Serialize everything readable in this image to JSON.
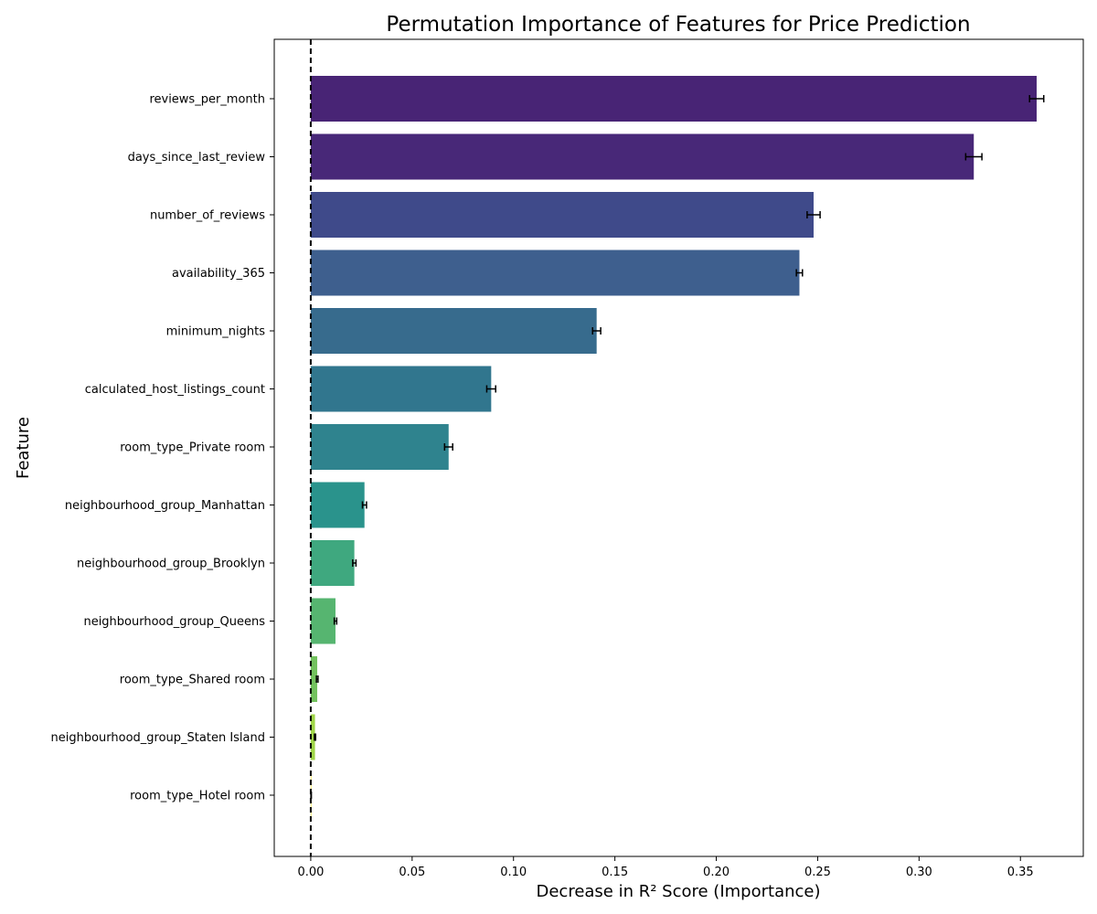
{
  "chart_data": {
    "type": "bar",
    "orientation": "horizontal",
    "title": "Permutation Importance of Features for Price Prediction",
    "xlabel": "Decrease in R² Score (Importance)",
    "ylabel": "Feature",
    "xlim": [
      -0.018,
      0.381
    ],
    "xticks": [
      0.0,
      0.05,
      0.1,
      0.15,
      0.2,
      0.25,
      0.3,
      0.35
    ],
    "xtick_labels": [
      "0.00",
      "0.05",
      "0.10",
      "0.15",
      "0.20",
      "0.25",
      "0.30",
      "0.35"
    ],
    "reference_line": {
      "x": 0,
      "style": "dashed"
    },
    "grid": false,
    "categories": [
      "reviews_per_month",
      "days_since_last_review",
      "number_of_reviews",
      "availability_365",
      "minimum_nights",
      "calculated_host_listings_count",
      "room_type_Private room",
      "neighbourhood_group_Manhattan",
      "neighbourhood_group_Brooklyn",
      "neighbourhood_group_Queens",
      "room_type_Shared room",
      "neighbourhood_group_Staten Island",
      "room_type_Hotel room"
    ],
    "values": [
      0.358,
      0.327,
      0.248,
      0.241,
      0.141,
      0.089,
      0.068,
      0.0265,
      0.0215,
      0.0122,
      0.0032,
      0.0021,
      0.0002
    ],
    "errors": [
      0.0035,
      0.004,
      0.0032,
      0.0015,
      0.002,
      0.0022,
      0.002,
      0.001,
      0.0008,
      0.0006,
      0.0004,
      0.0003,
      0.0001
    ],
    "colors": [
      "#482475",
      "#482878",
      "#3f4a8a",
      "#3e5f8e",
      "#376b8d",
      "#31768e",
      "#2f838e",
      "#2a938c",
      "#3fa87f",
      "#56b570",
      "#73c25e",
      "#a0d649",
      "#fde725"
    ]
  }
}
